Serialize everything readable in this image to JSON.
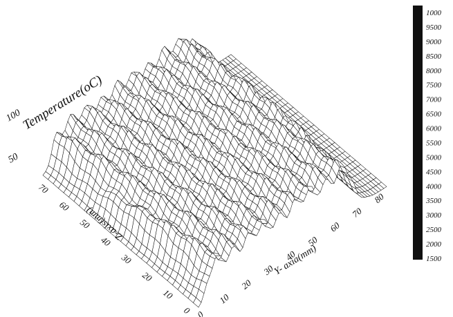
{
  "chart_data": {
    "type": "surface",
    "title": "",
    "z_axis_label": "Temperature(oC)",
    "z_ticks": [
      "50",
      "100"
    ],
    "y_axis_label": "Y- axia(mm)",
    "y_ticks": [
      "0",
      "10",
      "20",
      "30",
      "40",
      "50",
      "60",
      "70",
      "80"
    ],
    "x_axis_label": "Z-axis(mm)",
    "x_ticks": [
      "0",
      "10",
      "20",
      "30",
      "40",
      "50",
      "60",
      "70"
    ],
    "colorbar_labels": [
      "1000",
      "9500",
      "9000",
      "8500",
      "8000",
      "7500",
      "7000",
      "6500",
      "6000",
      "5500",
      "5000",
      "4500",
      "4000",
      "3500",
      "3000",
      "2500",
      "2000",
      "1500"
    ],
    "ranges": {
      "y_mm": [
        0,
        85
      ],
      "z_mm": [
        0,
        75
      ],
      "temperature": [
        0,
        110
      ]
    },
    "grid": true,
    "colors": {
      "mesh": "#111111",
      "colorbar": "#101010"
    }
  }
}
